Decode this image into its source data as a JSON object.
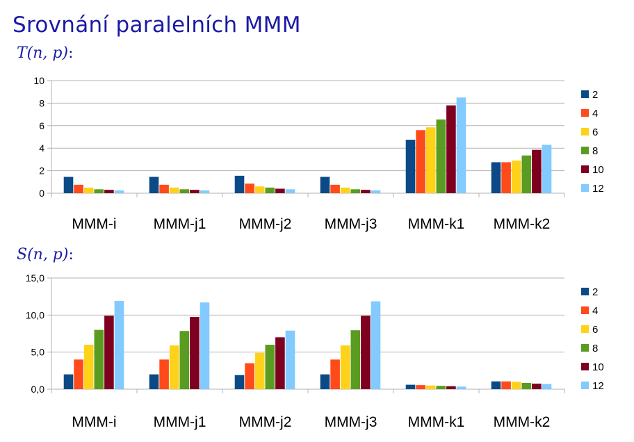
{
  "title": "Srovnání paralelních MMM",
  "series_colors": [
    "#0b4a86",
    "#ff4a1a",
    "#ffd21a",
    "#5a9c22",
    "#7e0021",
    "#83caff"
  ],
  "chart_data": [
    {
      "type": "bar",
      "label": "T(n, p)",
      "label_suffix": ":",
      "categories": [
        "MMM-i",
        "MMM-j1",
        "MMM-j2",
        "MMM-j3",
        "MMM-k1",
        "MMM-k2"
      ],
      "ylim": [
        0,
        10
      ],
      "yticks": [
        "0",
        "2",
        "4",
        "6",
        "8",
        "10"
      ],
      "ytick_values": [
        0,
        2,
        4,
        6,
        8,
        10
      ],
      "grid": true,
      "legend": "right",
      "series": [
        {
          "name": "2",
          "values": [
            1.45,
            1.45,
            1.55,
            1.45,
            4.75,
            2.75
          ]
        },
        {
          "name": "4",
          "values": [
            0.75,
            0.75,
            0.85,
            0.75,
            5.6,
            2.75
          ]
        },
        {
          "name": "6",
          "values": [
            0.5,
            0.5,
            0.6,
            0.5,
            5.85,
            2.9
          ]
        },
        {
          "name": "8",
          "values": [
            0.35,
            0.35,
            0.5,
            0.35,
            6.55,
            3.35
          ]
        },
        {
          "name": "10",
          "values": [
            0.3,
            0.3,
            0.4,
            0.3,
            7.8,
            3.85
          ]
        },
        {
          "name": "12",
          "values": [
            0.25,
            0.25,
            0.35,
            0.25,
            8.5,
            4.3
          ]
        }
      ]
    },
    {
      "type": "bar",
      "label": "S(n, p)",
      "label_suffix": ":",
      "categories": [
        "MMM-i",
        "MMM-j1",
        "MMM-j2",
        "MMM-j3",
        "MMM-k1",
        "MMM-k2"
      ],
      "ylim": [
        0,
        15
      ],
      "yticks": [
        "0,0",
        "5,0",
        "10,0",
        "15,0"
      ],
      "ytick_values": [
        0,
        5,
        10,
        15
      ],
      "grid": true,
      "legend": "right",
      "series": [
        {
          "name": "2",
          "values": [
            2.0,
            2.0,
            1.9,
            2.0,
            0.6,
            1.05
          ]
        },
        {
          "name": "4",
          "values": [
            4.0,
            4.0,
            3.5,
            4.0,
            0.55,
            1.05
          ]
        },
        {
          "name": "6",
          "values": [
            6.0,
            5.9,
            4.9,
            5.9,
            0.5,
            1.0
          ]
        },
        {
          "name": "8",
          "values": [
            8.0,
            7.85,
            6.0,
            7.95,
            0.45,
            0.85
          ]
        },
        {
          "name": "10",
          "values": [
            9.9,
            9.75,
            7.0,
            9.9,
            0.4,
            0.75
          ]
        },
        {
          "name": "12",
          "values": [
            11.9,
            11.7,
            7.9,
            11.85,
            0.35,
            0.7
          ]
        }
      ]
    }
  ]
}
